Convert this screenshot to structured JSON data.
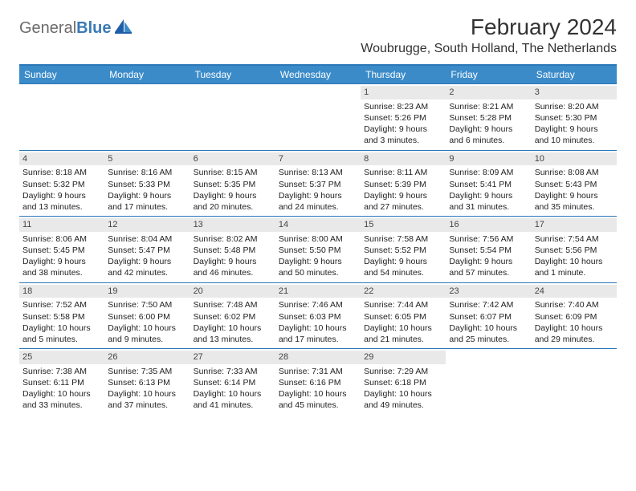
{
  "logo": {
    "general": "General",
    "blue": "Blue"
  },
  "title": "February 2024",
  "subtitle": "Woubrugge, South Holland, The Netherlands",
  "colors": {
    "header_bg": "#3b8bc9",
    "border": "#2a77b8",
    "daynum_bg": "#e9e9e9",
    "text": "#222222",
    "white": "#ffffff"
  },
  "day_headers": [
    "Sunday",
    "Monday",
    "Tuesday",
    "Wednesday",
    "Thursday",
    "Friday",
    "Saturday"
  ],
  "weeks": [
    [
      {
        "empty": true
      },
      {
        "empty": true
      },
      {
        "empty": true
      },
      {
        "empty": true
      },
      {
        "num": "1",
        "sunrise": "Sunrise: 8:23 AM",
        "sunset": "Sunset: 5:26 PM",
        "day1": "Daylight: 9 hours",
        "day2": "and 3 minutes."
      },
      {
        "num": "2",
        "sunrise": "Sunrise: 8:21 AM",
        "sunset": "Sunset: 5:28 PM",
        "day1": "Daylight: 9 hours",
        "day2": "and 6 minutes."
      },
      {
        "num": "3",
        "sunrise": "Sunrise: 8:20 AM",
        "sunset": "Sunset: 5:30 PM",
        "day1": "Daylight: 9 hours",
        "day2": "and 10 minutes."
      }
    ],
    [
      {
        "num": "4",
        "sunrise": "Sunrise: 8:18 AM",
        "sunset": "Sunset: 5:32 PM",
        "day1": "Daylight: 9 hours",
        "day2": "and 13 minutes."
      },
      {
        "num": "5",
        "sunrise": "Sunrise: 8:16 AM",
        "sunset": "Sunset: 5:33 PM",
        "day1": "Daylight: 9 hours",
        "day2": "and 17 minutes."
      },
      {
        "num": "6",
        "sunrise": "Sunrise: 8:15 AM",
        "sunset": "Sunset: 5:35 PM",
        "day1": "Daylight: 9 hours",
        "day2": "and 20 minutes."
      },
      {
        "num": "7",
        "sunrise": "Sunrise: 8:13 AM",
        "sunset": "Sunset: 5:37 PM",
        "day1": "Daylight: 9 hours",
        "day2": "and 24 minutes."
      },
      {
        "num": "8",
        "sunrise": "Sunrise: 8:11 AM",
        "sunset": "Sunset: 5:39 PM",
        "day1": "Daylight: 9 hours",
        "day2": "and 27 minutes."
      },
      {
        "num": "9",
        "sunrise": "Sunrise: 8:09 AM",
        "sunset": "Sunset: 5:41 PM",
        "day1": "Daylight: 9 hours",
        "day2": "and 31 minutes."
      },
      {
        "num": "10",
        "sunrise": "Sunrise: 8:08 AM",
        "sunset": "Sunset: 5:43 PM",
        "day1": "Daylight: 9 hours",
        "day2": "and 35 minutes."
      }
    ],
    [
      {
        "num": "11",
        "sunrise": "Sunrise: 8:06 AM",
        "sunset": "Sunset: 5:45 PM",
        "day1": "Daylight: 9 hours",
        "day2": "and 38 minutes."
      },
      {
        "num": "12",
        "sunrise": "Sunrise: 8:04 AM",
        "sunset": "Sunset: 5:47 PM",
        "day1": "Daylight: 9 hours",
        "day2": "and 42 minutes."
      },
      {
        "num": "13",
        "sunrise": "Sunrise: 8:02 AM",
        "sunset": "Sunset: 5:48 PM",
        "day1": "Daylight: 9 hours",
        "day2": "and 46 minutes."
      },
      {
        "num": "14",
        "sunrise": "Sunrise: 8:00 AM",
        "sunset": "Sunset: 5:50 PM",
        "day1": "Daylight: 9 hours",
        "day2": "and 50 minutes."
      },
      {
        "num": "15",
        "sunrise": "Sunrise: 7:58 AM",
        "sunset": "Sunset: 5:52 PM",
        "day1": "Daylight: 9 hours",
        "day2": "and 54 minutes."
      },
      {
        "num": "16",
        "sunrise": "Sunrise: 7:56 AM",
        "sunset": "Sunset: 5:54 PM",
        "day1": "Daylight: 9 hours",
        "day2": "and 57 minutes."
      },
      {
        "num": "17",
        "sunrise": "Sunrise: 7:54 AM",
        "sunset": "Sunset: 5:56 PM",
        "day1": "Daylight: 10 hours",
        "day2": "and 1 minute."
      }
    ],
    [
      {
        "num": "18",
        "sunrise": "Sunrise: 7:52 AM",
        "sunset": "Sunset: 5:58 PM",
        "day1": "Daylight: 10 hours",
        "day2": "and 5 minutes."
      },
      {
        "num": "19",
        "sunrise": "Sunrise: 7:50 AM",
        "sunset": "Sunset: 6:00 PM",
        "day1": "Daylight: 10 hours",
        "day2": "and 9 minutes."
      },
      {
        "num": "20",
        "sunrise": "Sunrise: 7:48 AM",
        "sunset": "Sunset: 6:02 PM",
        "day1": "Daylight: 10 hours",
        "day2": "and 13 minutes."
      },
      {
        "num": "21",
        "sunrise": "Sunrise: 7:46 AM",
        "sunset": "Sunset: 6:03 PM",
        "day1": "Daylight: 10 hours",
        "day2": "and 17 minutes."
      },
      {
        "num": "22",
        "sunrise": "Sunrise: 7:44 AM",
        "sunset": "Sunset: 6:05 PM",
        "day1": "Daylight: 10 hours",
        "day2": "and 21 minutes."
      },
      {
        "num": "23",
        "sunrise": "Sunrise: 7:42 AM",
        "sunset": "Sunset: 6:07 PM",
        "day1": "Daylight: 10 hours",
        "day2": "and 25 minutes."
      },
      {
        "num": "24",
        "sunrise": "Sunrise: 7:40 AM",
        "sunset": "Sunset: 6:09 PM",
        "day1": "Daylight: 10 hours",
        "day2": "and 29 minutes."
      }
    ],
    [
      {
        "num": "25",
        "sunrise": "Sunrise: 7:38 AM",
        "sunset": "Sunset: 6:11 PM",
        "day1": "Daylight: 10 hours",
        "day2": "and 33 minutes."
      },
      {
        "num": "26",
        "sunrise": "Sunrise: 7:35 AM",
        "sunset": "Sunset: 6:13 PM",
        "day1": "Daylight: 10 hours",
        "day2": "and 37 minutes."
      },
      {
        "num": "27",
        "sunrise": "Sunrise: 7:33 AM",
        "sunset": "Sunset: 6:14 PM",
        "day1": "Daylight: 10 hours",
        "day2": "and 41 minutes."
      },
      {
        "num": "28",
        "sunrise": "Sunrise: 7:31 AM",
        "sunset": "Sunset: 6:16 PM",
        "day1": "Daylight: 10 hours",
        "day2": "and 45 minutes."
      },
      {
        "num": "29",
        "sunrise": "Sunrise: 7:29 AM",
        "sunset": "Sunset: 6:18 PM",
        "day1": "Daylight: 10 hours",
        "day2": "and 49 minutes."
      },
      {
        "empty": true
      },
      {
        "empty": true
      }
    ]
  ]
}
